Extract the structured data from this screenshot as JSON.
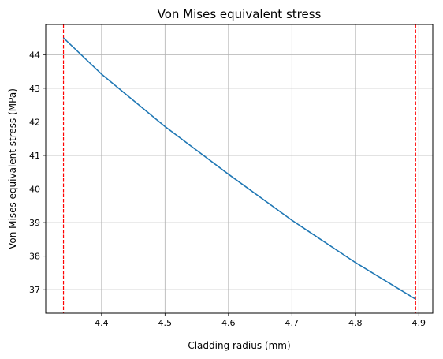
{
  "chart_data": {
    "type": "line",
    "title": "Von Mises equivalent stress",
    "xlabel": "Cladding radius (mm)",
    "ylabel": "Von Mises equivalent stress (MPa)",
    "xlim": [
      4.312,
      4.922
    ],
    "ylim": [
      36.3,
      44.9
    ],
    "xticks": [
      4.4,
      4.5,
      4.6,
      4.7,
      4.8,
      4.9
    ],
    "xtick_labels": [
      "4.4",
      "4.5",
      "4.6",
      "4.7",
      "4.8",
      "4.9"
    ],
    "yticks": [
      37,
      38,
      39,
      40,
      41,
      42,
      43,
      44
    ],
    "ytick_labels": [
      "37",
      "38",
      "39",
      "40",
      "41",
      "42",
      "43",
      "44"
    ],
    "grid": true,
    "series": [
      {
        "color": "#1f77b4",
        "x": [
          4.34,
          4.4,
          4.5,
          4.6,
          4.7,
          4.8,
          4.895
        ],
        "y": [
          44.5,
          43.42,
          41.86,
          40.44,
          39.07,
          37.81,
          36.72
        ]
      }
    ],
    "vlines": [
      {
        "x": 4.34,
        "color": "#ff0000",
        "style": "dashed"
      },
      {
        "x": 4.895,
        "color": "#ff0000",
        "style": "dashed"
      }
    ]
  }
}
